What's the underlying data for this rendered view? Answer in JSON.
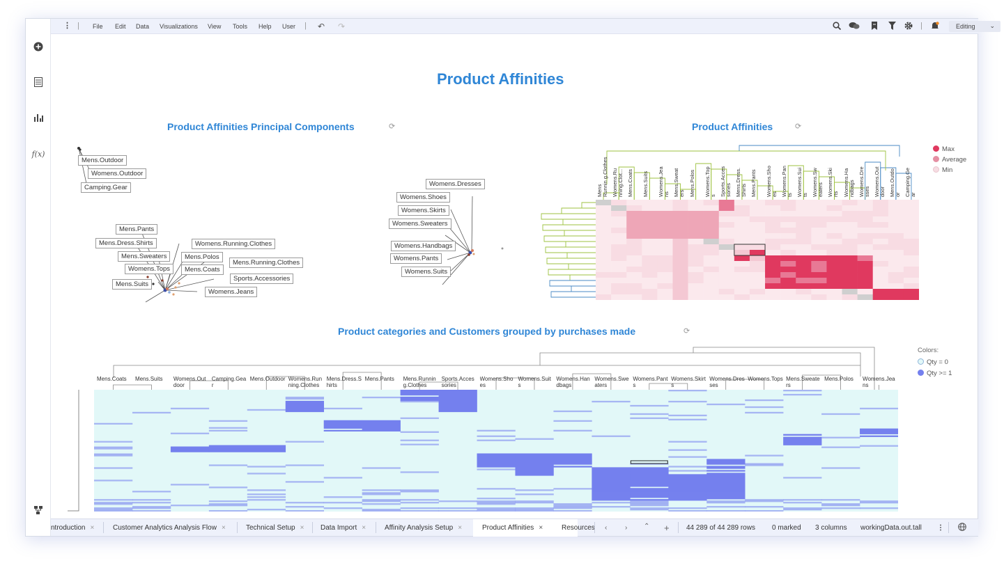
{
  "menu": {
    "items": [
      "File",
      "Edit",
      "Data",
      "Visualizations",
      "View",
      "Tools",
      "Help",
      "User"
    ],
    "mode": "Editing"
  },
  "page": {
    "title": "Product Affinities"
  },
  "pca": {
    "title": "Product Affinities Principal Components",
    "labels": [
      "Mens.Outdoor",
      "Womens.Outdoor",
      "Camping.Gear",
      "Mens.Pants",
      "Mens.Dress.Shirts",
      "Mens.Sweaters",
      "Womens.Tops",
      "Mens.Suits",
      "Womens.Running.Clothes",
      "Mens.Polos",
      "Mens.Coats",
      "Mens.Running.Clothes",
      "Sports.Accessories",
      "Womens.Jeans",
      "Womens.Dresses",
      "Womens.Shoes",
      "Womens.Skirts",
      "Womens.Sweaters",
      "Womens.Handbags",
      "Womens.Pants",
      "Womens.Suits"
    ]
  },
  "affinity": {
    "title": "Product Affinities",
    "columns": [
      "Mens Runnin g.Clothes",
      "Womens.Ru nning.Clot...",
      "Mens.Coats",
      "Mens.Suits",
      "Womens.Jea ns",
      "Mens.Sweat ers",
      "Mens.Polos",
      "Womens.Top s",
      "Sports.Acces sories",
      "Mens.Dress. Shirts",
      "Mens.Pants",
      "Womens.Sho es",
      "Womens.Pan ts",
      "Womens.Sui ts",
      "Womens.Sw eaters",
      "Womens.Ski rts",
      "Womens.Ha ndbags",
      "Womens.Dre sses",
      "Womens.Out door",
      "Mens.Outdo or",
      "Camping.Ge ar"
    ],
    "legend": [
      "Max",
      "Average",
      "Min"
    ],
    "legend_colors": [
      "#e0395f",
      "#e58fa3",
      "#f7dde3"
    ]
  },
  "grouped": {
    "title": "Product categories and Customers grouped by purchases made",
    "columns": [
      "Mens.Coats",
      "Mens.Suits",
      "Womens.Out door",
      "Camping.Ge ar",
      "Mens.Outdoo r",
      "Womens.Run ning.Clothes",
      "Mens.Dress. Shirts",
      "Mens.Pants",
      "Mens.Runnin g.Clothes",
      "Sports.Acces sories",
      "Womens.Sho es",
      "Womens.Suit s",
      "Womens.Han dbags",
      "Womens.Sw eaters",
      "Womens.Pan ts",
      "Womens.Skir ts",
      "Womens.Dre sses",
      "Womens.Top s",
      "Mens.Sweate rs",
      "Mens.Polos",
      "Womens.Jea ns"
    ],
    "legend_title": "Colors:",
    "legend": [
      "Qty = 0",
      "Qty >= 1"
    ],
    "legend_colors": [
      "#e2f8f8",
      "#7480ee"
    ]
  },
  "tabs": [
    "ntroduction",
    "Customer Analytics Analysis Flow",
    "Technical Setup",
    "Data Import",
    "Affinity Analysis Setup",
    "Product Affinities",
    "Resources"
  ],
  "status": {
    "rows": "44 289 of 44 289 rows",
    "marked": "0 marked",
    "columns": "3 columns",
    "table": "workingData.out.tall"
  }
}
